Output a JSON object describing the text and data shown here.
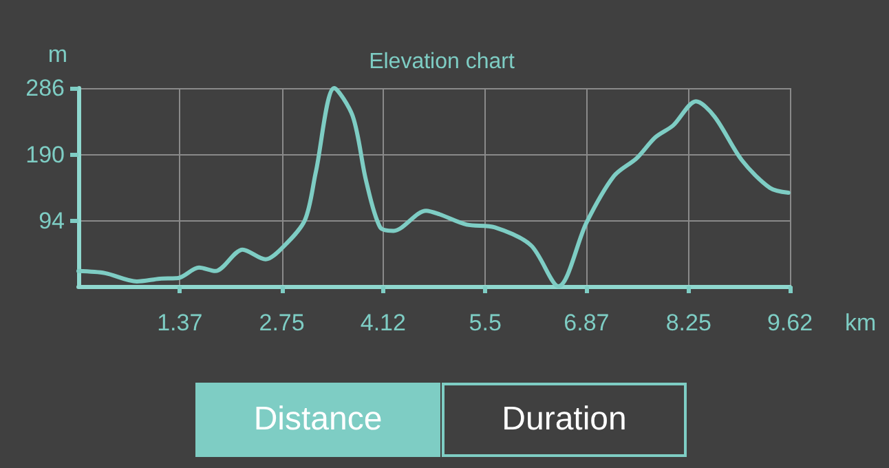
{
  "chart_data": {
    "type": "line",
    "title": "Elevation chart",
    "xlabel": "km",
    "ylabel": "m",
    "x": [
      0,
      0.36,
      0.79,
      1.1,
      1.35,
      1.63,
      1.85,
      2.22,
      2.53,
      2.75,
      3.06,
      3.21,
      3.46,
      3.71,
      3.89,
      4.08,
      4.26,
      4.7,
      4.88,
      5.25,
      5.63,
      6.12,
      6.49,
      6.87,
      7.24,
      7.55,
      7.8,
      8.04,
      8.35,
      8.6,
      8.97,
      9.35,
      9.6
    ],
    "series": [
      {
        "color": "#7ecdc4",
        "values": [
          22,
          19,
          7,
          11,
          12,
          27,
          22,
          53,
          39,
          55,
          95,
          165,
          286,
          245,
          152,
          85,
          80,
          109,
          104,
          89,
          85,
          59,
          0,
          92,
          159,
          185,
          215,
          232,
          267,
          245,
          182,
          142,
          135
        ]
      }
    ],
    "xlim": [
      0,
      9.62
    ],
    "xticks": [
      1.37,
      2.75,
      4.12,
      5.5,
      6.87,
      8.25,
      9.62
    ],
    "ylim": [
      0,
      286
    ],
    "yticks": [
      94,
      190,
      286
    ],
    "grid": true,
    "marker": "none",
    "line_style": "solid",
    "annotations": [
      "Distance",
      "Duration"
    ]
  }
}
